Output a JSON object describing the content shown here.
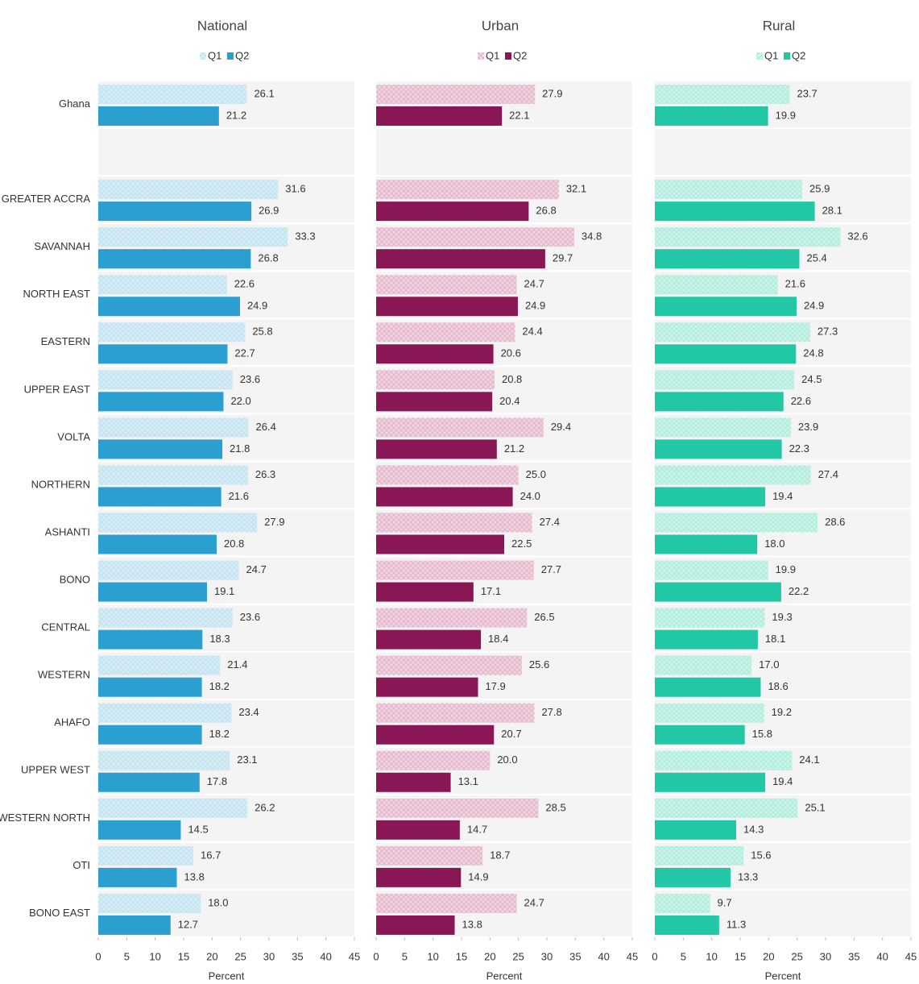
{
  "chart_data": [
    {
      "type": "hbar",
      "title": "National",
      "xlabel": "Percent",
      "categories": [
        "Ghana",
        null,
        "GREATER ACCRA",
        "SAVANNAH",
        "NORTH EAST",
        "EASTERN",
        "UPPER EAST",
        "VOLTA",
        "NORTHERN",
        "ASHANTI",
        "BONO",
        "CENTRAL",
        "WESTERN",
        "AHAFO",
        "UPPER WEST",
        "WESTERN NORTH",
        "OTI",
        "BONO EAST"
      ],
      "series": [
        {
          "name": "Q1",
          "color": "#bfe3f2",
          "pattern": true,
          "values": [
            26.1,
            null,
            31.6,
            33.3,
            22.6,
            25.8,
            23.6,
            26.4,
            26.3,
            27.9,
            24.7,
            23.6,
            21.4,
            23.4,
            23.1,
            26.2,
            16.7,
            18.0
          ],
          "value_labels": [
            "26.1",
            null,
            "31.6",
            "33.3",
            "22.6",
            "25.8",
            "23.6",
            "26.4",
            "26.3",
            "27.9",
            "24.7",
            "23.6",
            "21.4",
            "23.4",
            "23.1",
            "26.2",
            "16.7",
            "18.0"
          ]
        },
        {
          "name": "Q2",
          "color": "#2a9fd0",
          "pattern": false,
          "values": [
            21.2,
            null,
            26.9,
            26.8,
            24.9,
            22.7,
            22.0,
            21.8,
            21.6,
            20.8,
            19.1,
            18.3,
            18.2,
            18.2,
            17.8,
            14.5,
            13.8,
            12.7
          ],
          "value_labels": [
            "21.2",
            null,
            "26.9",
            "26.8",
            "24.9",
            "22.7",
            "22.0",
            "21.8",
            "21.6",
            "20.8",
            "19.1",
            "18.3",
            "18.2",
            "18.2",
            "17.8",
            "14.5",
            "13.8",
            "12.7"
          ]
        }
      ],
      "xlim": [
        0,
        45
      ],
      "xticks": [
        0,
        5,
        10,
        15,
        20,
        25,
        30,
        35,
        40,
        45
      ]
    },
    {
      "type": "hbar",
      "title": "Urban",
      "xlabel": "Percent",
      "series": [
        {
          "name": "Q1",
          "color": "#e6b3cb",
          "pattern": true,
          "values": [
            27.9,
            null,
            32.1,
            34.8,
            24.7,
            24.4,
            20.8,
            29.4,
            25.0,
            27.4,
            27.7,
            26.5,
            25.6,
            27.8,
            20.0,
            28.5,
            18.7,
            24.7
          ],
          "value_labels": [
            "27.9",
            null,
            "32.1",
            "34.8",
            "24.7",
            "24.4",
            "20.8",
            "29.4",
            "25.0",
            "27.4",
            "27.7",
            "26.5",
            "25.6",
            "27.8",
            "20.0",
            "28.5",
            "18.7",
            "24.7"
          ]
        },
        {
          "name": "Q2",
          "color": "#8a1755",
          "pattern": false,
          "values": [
            22.1,
            null,
            26.8,
            29.7,
            24.9,
            20.6,
            20.4,
            21.2,
            24.0,
            22.5,
            17.1,
            18.4,
            17.9,
            20.7,
            13.1,
            14.7,
            14.9,
            13.8
          ],
          "value_labels": [
            "22.1",
            null,
            "26.8",
            "29.7",
            "24.9",
            "20.6",
            "20.4",
            "21.2",
            "24.0",
            "22.5",
            "17.1",
            "18.4",
            "17.9",
            "20.7",
            "13.1",
            "14.7",
            "14.9",
            "13.8"
          ]
        }
      ],
      "xlim": [
        0,
        45
      ],
      "xticks": [
        0,
        5,
        10,
        15,
        20,
        25,
        30,
        35,
        40,
        45
      ]
    },
    {
      "type": "hbar",
      "title": "Rural",
      "xlabel": "Percent",
      "series": [
        {
          "name": "Q1",
          "color": "#a9eedd",
          "pattern": true,
          "values": [
            23.7,
            null,
            25.9,
            32.6,
            21.6,
            27.3,
            24.5,
            23.9,
            27.4,
            28.6,
            19.9,
            19.3,
            17.0,
            19.2,
            24.1,
            25.1,
            15.6,
            9.7
          ],
          "value_labels": [
            "23.7",
            null,
            "25.9",
            "32.6",
            "21.6",
            "27.3",
            "24.5",
            "23.9",
            "27.4",
            "28.6",
            "19.9",
            "19.3",
            "17.0",
            "19.2",
            "24.1",
            "25.1",
            "15.6",
            "9.7"
          ]
        },
        {
          "name": "Q2",
          "color": "#22c8a5",
          "pattern": false,
          "values": [
            19.9,
            null,
            28.1,
            25.4,
            24.9,
            24.8,
            22.6,
            22.3,
            19.4,
            18.0,
            22.2,
            18.1,
            18.6,
            15.8,
            19.4,
            14.3,
            13.3,
            11.3
          ],
          "value_labels": [
            "19.9",
            null,
            "28.1",
            "25.4",
            "24.9",
            "24.8",
            "22.6",
            "22.3",
            "19.4",
            "18.0",
            "22.2",
            "18.1",
            "18.6",
            "15.8",
            "19.4",
            "14.3",
            "13.3",
            "11.3"
          ]
        }
      ],
      "xlim": [
        0,
        45
      ],
      "xticks": [
        0,
        5,
        10,
        15,
        20,
        25,
        30,
        35,
        40,
        45
      ]
    }
  ]
}
